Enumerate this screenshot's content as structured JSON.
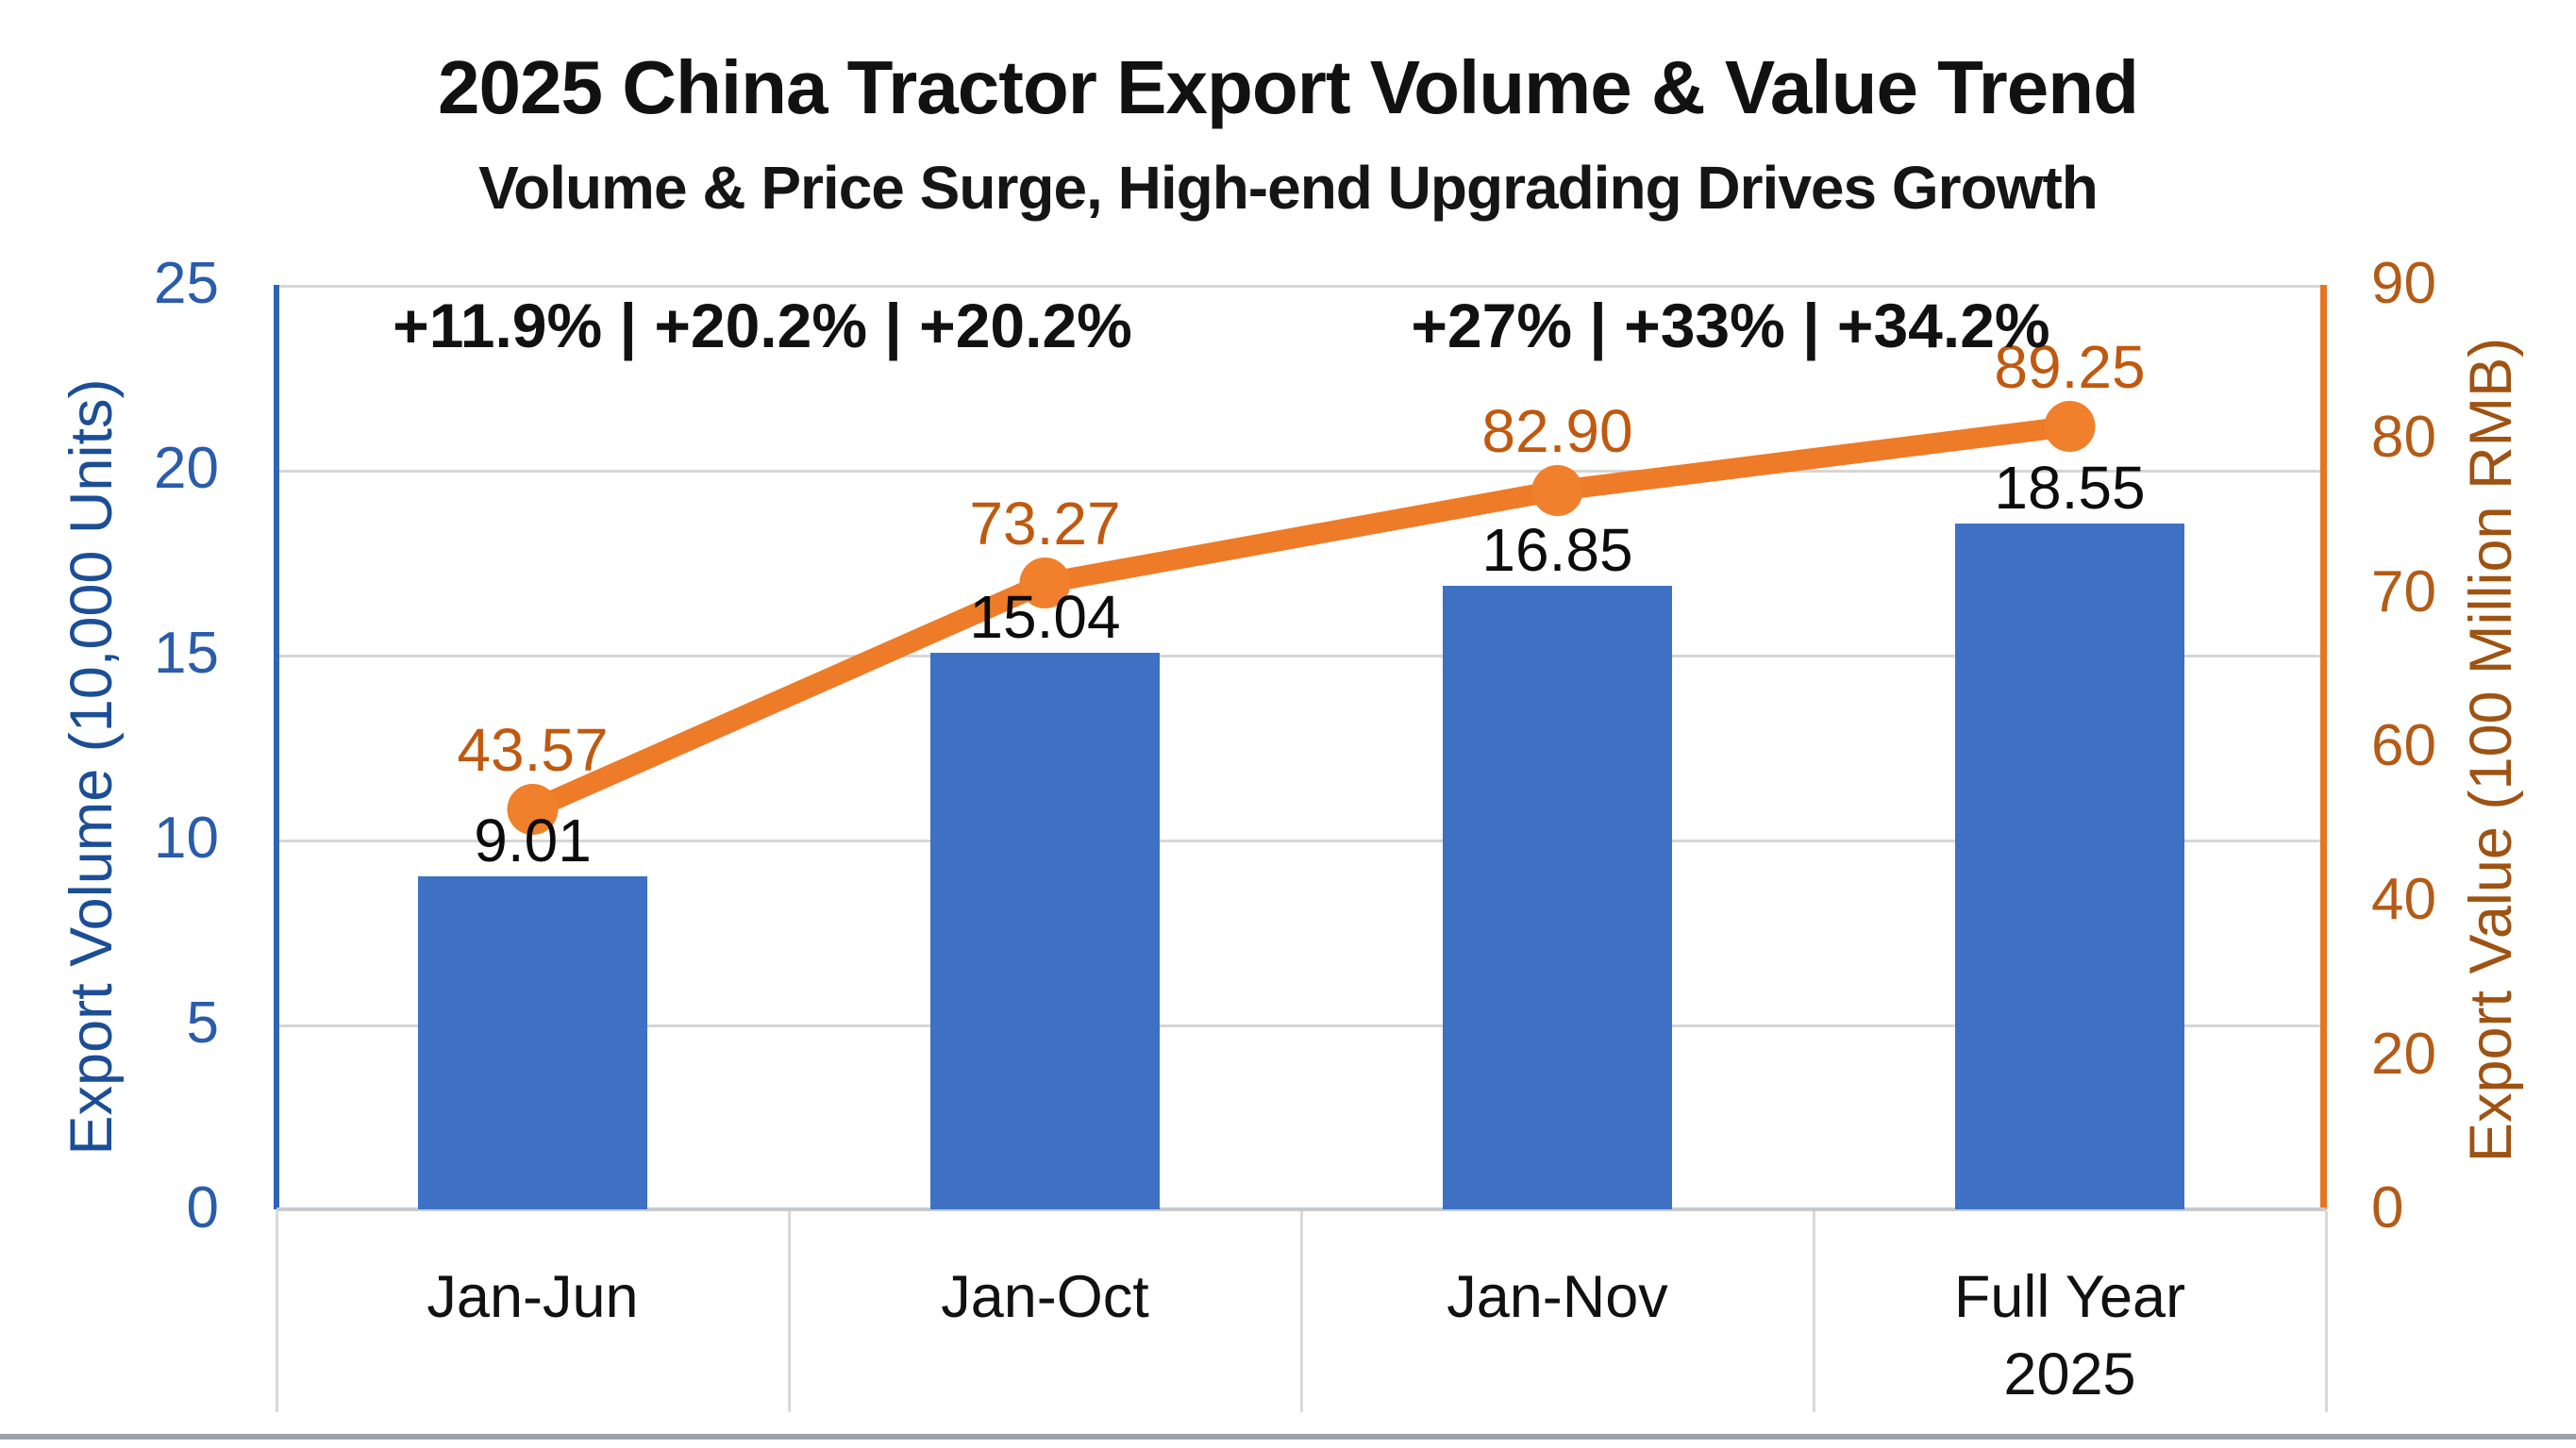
{
  "title": "2025 China Tractor Export Volume & Value Trend",
  "subtitle": "Volume & Price Surge, High-end Upgrading Drives Growth",
  "annotations": {
    "volume_growth": "+11.9% | +20.2% | +20.2%",
    "value_growth": "+27% | +33% | +34.2%"
  },
  "axes": {
    "left": {
      "title": "Export Volume (10,000 Units)",
      "ticks": [
        "25",
        "20",
        "15",
        "10",
        "5",
        "0"
      ],
      "text_color": "#2A5CAB",
      "spine_color": "#2E63B8"
    },
    "right": {
      "title": "Export Value (100 Million RMB)",
      "ticks": [
        "90",
        "80",
        "70",
        "60",
        "40",
        "20",
        "0"
      ],
      "text_color": "#B45B16",
      "spine_color": "#E8731F"
    }
  },
  "chart_data": {
    "type": "combo",
    "title": "2025 China Tractor Export Volume & Value Trend",
    "subtitle": "Volume & Price Surge, High-end Upgrading Drives Growth",
    "categories": [
      "Jan-Jun",
      "Jan-Oct",
      "Jan-Nov",
      "Full Year 2025"
    ],
    "series": [
      {
        "name": "Export Volume",
        "type": "bar",
        "axis": "left",
        "unit": "10,000 Units",
        "values": [
          9.01,
          15.04,
          16.85,
          18.55
        ],
        "labels": [
          "9.01",
          "15.04",
          "16.85",
          "18.55"
        ],
        "color": "#3E70C4",
        "label_color": "#0c0c0c"
      },
      {
        "name": "Export Value",
        "type": "line",
        "axis": "right",
        "unit": "100 Million RMB",
        "values": [
          43.57,
          73.27,
          82.9,
          89.25
        ],
        "labels": [
          "43.57",
          "73.27",
          "82.90",
          "89.25"
        ],
        "color": "#EE7B28",
        "marker_color": "#F0802C",
        "label_color": "#C0590F"
      }
    ],
    "left_axis": {
      "label": "Export Volume (10,000 Units)",
      "range": [
        0,
        25
      ],
      "ticks": [
        0,
        5,
        10,
        15,
        20,
        25
      ]
    },
    "right_axis": {
      "label": "Export Value (100 Million RMB)",
      "ticks_shown": [
        0,
        20,
        40,
        60,
        70,
        80,
        90
      ]
    },
    "annotations": [
      "+11.9% | +20.2% | +20.2%",
      "+27% | +33% | +34.2%"
    ],
    "legend": "none",
    "grid": "horizontal",
    "gridline_color": "#D6D6D6"
  }
}
